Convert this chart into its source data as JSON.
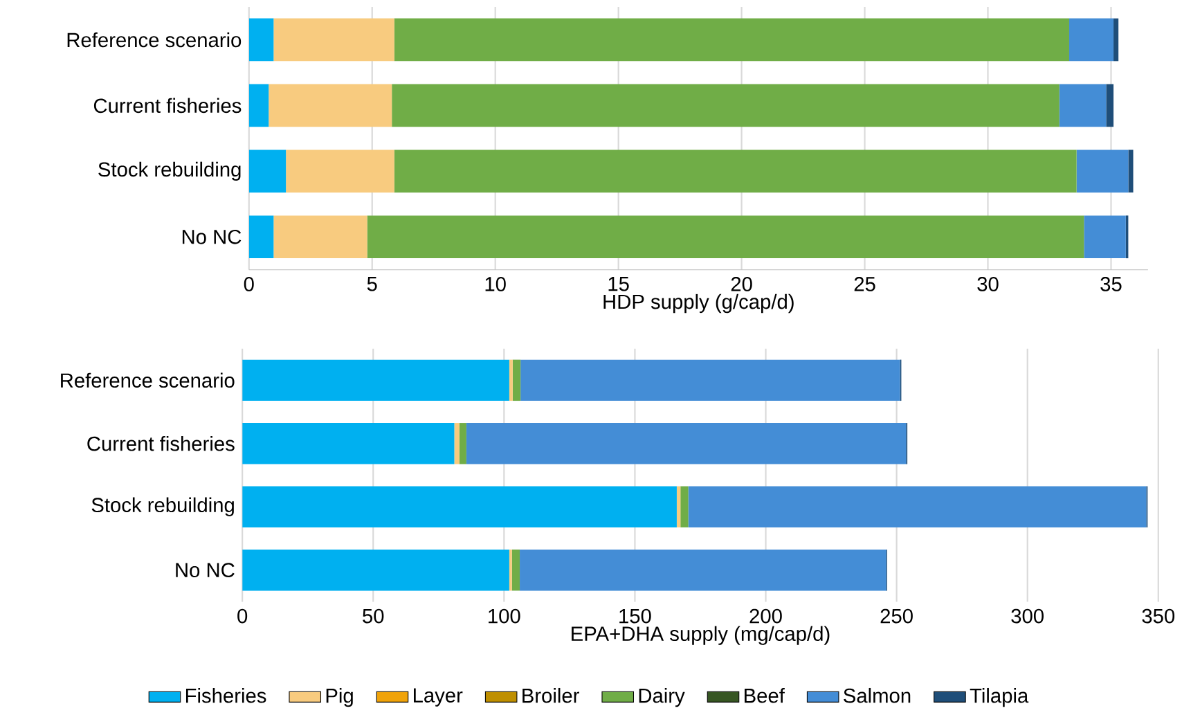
{
  "chart_data": [
    {
      "type": "bar",
      "orientation": "horizontal",
      "stacked": true,
      "xlabel": "HDP supply (g/cap/d)",
      "categories": [
        "Reference scenario",
        "Current fisheries",
        "Stock rebuilding",
        "No NC"
      ],
      "xlim": [
        0,
        36.5
      ],
      "xticks": [
        0,
        5,
        10,
        15,
        20,
        25,
        30,
        35
      ],
      "grid": "x",
      "series": [
        {
          "color": "#00b0f0",
          "values": [
            1.0,
            0.8,
            1.5,
            1.0
          ]
        },
        {
          "color": "#f8cb7f",
          "values": [
            4.9,
            5.0,
            4.4,
            3.8
          ]
        },
        {
          "color": "#70ad47",
          "values": [
            27.4,
            27.1,
            27.7,
            29.1
          ]
        },
        {
          "color": "#448dd6",
          "values": [
            1.8,
            1.9,
            2.1,
            1.7
          ]
        },
        {
          "color": "#1f4e79",
          "values": [
            0.2,
            0.3,
            0.2,
            0.1
          ]
        }
      ]
    },
    {
      "type": "bar",
      "orientation": "horizontal",
      "stacked": true,
      "xlabel": "EPA+DHA supply (mg/cap/d)",
      "categories": [
        "Reference scenario",
        "Current fisheries",
        "Stock rebuilding",
        "No NC"
      ],
      "xlim": [
        0,
        350
      ],
      "xticks": [
        0,
        50,
        100,
        150,
        200,
        250,
        300,
        350
      ],
      "grid": "x",
      "legend": "bottom",
      "series": [
        {
          "name": "Fisheries",
          "color": "#00b0f0",
          "values": [
            102,
            81,
            166,
            102
          ]
        },
        {
          "name": "Pig",
          "color": "#f8cb7f",
          "values": [
            1.3,
            1.9,
            1.4,
            1.0
          ]
        },
        {
          "name": "Layer",
          "color": "#f0a30a",
          "values": [
            0,
            0,
            0,
            0
          ]
        },
        {
          "name": "Broiler",
          "color": "#bf8f00",
          "values": [
            0,
            0,
            0,
            0
          ]
        },
        {
          "name": "Dairy",
          "color": "#70ad47",
          "values": [
            3,
            2.7,
            3,
            3
          ]
        },
        {
          "name": "Beef",
          "color": "#375623",
          "values": [
            0,
            0,
            0,
            0
          ]
        },
        {
          "name": "Salmon",
          "color": "#448dd6",
          "values": [
            145,
            168,
            175,
            140
          ]
        },
        {
          "name": "Tilapia",
          "color": "#1f4e79",
          "values": [
            0.5,
            0.5,
            0.5,
            0.4
          ]
        }
      ]
    }
  ]
}
